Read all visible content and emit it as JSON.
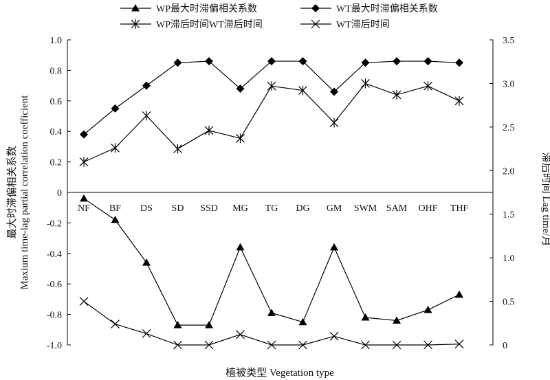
{
  "chart_data": {
    "type": "line",
    "categories": [
      "NF",
      "BF",
      "DS",
      "SD",
      "SSD",
      "MG",
      "TG",
      "DG",
      "GM",
      "SWM",
      "SAM",
      "OHF",
      "THF"
    ],
    "xlabel": "植被类型 Vegetation type",
    "ylabel_left": [
      "最大时滞偏相关系数",
      "Maxium time-lag partial correlation coefficient"
    ],
    "ylabel_right": "滞后时间 Lag time/月",
    "left_axis": {
      "ylim": [
        -1.0,
        1.0
      ],
      "ticks": [
        "-1.0",
        "-0.8",
        "-0.6",
        "-0.4",
        "-0.2",
        "0",
        "0.2",
        "0.4",
        "0.6",
        "0.8",
        "1.0"
      ]
    },
    "right_axis": {
      "ylim": [
        0,
        3.5
      ],
      "ticks": [
        "0",
        "0.5",
        "1.0",
        "1.5",
        "2.0",
        "2.5",
        "3.0",
        "3.5"
      ]
    },
    "grid": false,
    "legend_position": "top",
    "series": [
      {
        "name": "WP最大时滞偏相关系数",
        "axis": "left",
        "marker": "triangle",
        "values": [
          -0.04,
          -0.18,
          -0.46,
          -0.87,
          -0.87,
          -0.36,
          -0.79,
          -0.85,
          -0.36,
          -0.82,
          -0.84,
          -0.77,
          -0.67
        ]
      },
      {
        "name": "WT最大时滞偏相关系数",
        "axis": "left",
        "marker": "diamond",
        "values": [
          0.38,
          0.55,
          0.7,
          0.85,
          0.86,
          0.68,
          0.86,
          0.86,
          0.66,
          0.85,
          0.86,
          0.86,
          0.85
        ]
      },
      {
        "name": "WP滞后时间WT滞后时间",
        "axis": "right",
        "marker": "asterisk",
        "values": [
          2.1,
          2.26,
          2.63,
          2.25,
          2.46,
          2.37,
          2.97,
          2.92,
          2.55,
          3.0,
          2.87,
          2.97,
          2.8
        ]
      },
      {
        "name": "WT滞后时间",
        "axis": "right",
        "marker": "x",
        "values": [
          0.5,
          0.24,
          0.13,
          0.0,
          0.0,
          0.12,
          0.0,
          0.0,
          0.1,
          0.0,
          0.0,
          0.0,
          0.01
        ]
      }
    ]
  }
}
